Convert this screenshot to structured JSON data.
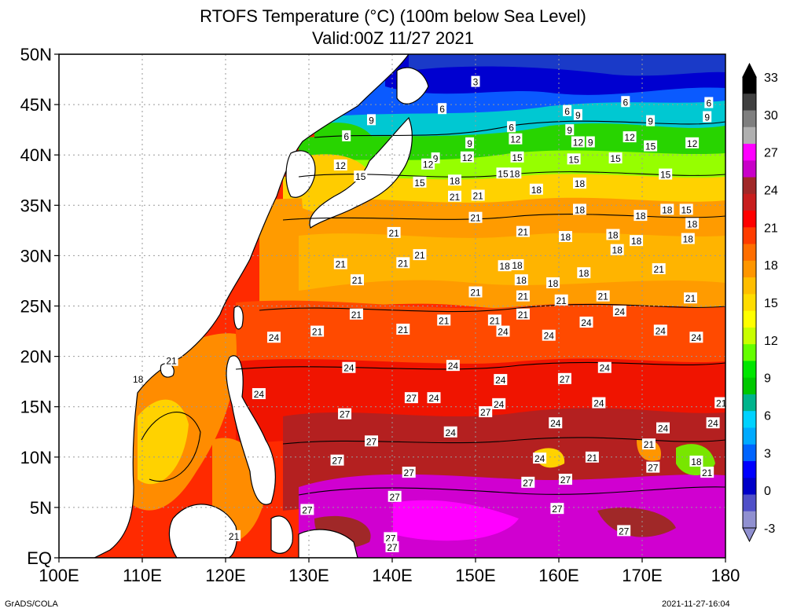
{
  "title": {
    "line1": "RTOFS Temperature (°C) (100m below Sea Level)",
    "line2": "Valid:00Z 11/27 2021"
  },
  "footer": {
    "left": "GrADS/COLA",
    "right": "2021-11-27-16:04"
  },
  "axes": {
    "x_ticks": [
      "100E",
      "110E",
      "120E",
      "130E",
      "140E",
      "150E",
      "160E",
      "170E",
      "180"
    ],
    "y_ticks": [
      "EQ",
      "5N",
      "10N",
      "15N",
      "20N",
      "25N",
      "30N",
      "35N",
      "40N",
      "45N",
      "50N"
    ],
    "x_range_deg_east": [
      100,
      180
    ],
    "y_range_deg_north": [
      0,
      50
    ],
    "grid": true
  },
  "colorbar": {
    "labels": [
      "33",
      "30",
      "27",
      "24",
      "21",
      "18",
      "15",
      "12",
      "9",
      "6",
      "3",
      "0",
      "-3"
    ],
    "colors_top_to_bottom": [
      "#000000",
      "#404040",
      "#7f7f7f",
      "#b0b0b0",
      "#ff00ff",
      "#c800c8",
      "#a02828",
      "#c81e1e",
      "#ff0000",
      "#ff3c00",
      "#ff6e00",
      "#ff9600",
      "#ffbe00",
      "#ffdc00",
      "#ffff00",
      "#c8ff00",
      "#64ff00",
      "#00e600",
      "#00c800",
      "#00b48c",
      "#00d2ff",
      "#00aaff",
      "#0064ff",
      "#0000ff",
      "#0000c8",
      "#5050c8",
      "#9090d0"
    ]
  },
  "contour_labels": [
    {
      "t": "3",
      "lon": 150.0,
      "lat": 47.3
    },
    {
      "t": "6",
      "lon": 178.0,
      "lat": 45.2
    },
    {
      "t": "6",
      "lon": 146.0,
      "lat": 44.6
    },
    {
      "t": "6",
      "lon": 161.0,
      "lat": 44.4
    },
    {
      "t": "6",
      "lon": 168.0,
      "lat": 45.3
    },
    {
      "t": "6",
      "lon": 134.5,
      "lat": 41.9
    },
    {
      "t": "6",
      "lon": 154.3,
      "lat": 42.8
    },
    {
      "t": "9",
      "lon": 162.3,
      "lat": 44.0
    },
    {
      "t": "9",
      "lon": 137.5,
      "lat": 43.5
    },
    {
      "t": "9",
      "lon": 171.0,
      "lat": 43.4
    },
    {
      "t": "9",
      "lon": 177.8,
      "lat": 43.8
    },
    {
      "t": "9",
      "lon": 161.3,
      "lat": 42.5
    },
    {
      "t": "9",
      "lon": 163.8,
      "lat": 41.3
    },
    {
      "t": "9",
      "lon": 149.3,
      "lat": 41.2
    },
    {
      "t": "9",
      "lon": 145.2,
      "lat": 39.7
    },
    {
      "t": "12",
      "lon": 154.8,
      "lat": 41.6
    },
    {
      "t": "12",
      "lon": 162.3,
      "lat": 41.3
    },
    {
      "t": "12",
      "lon": 168.5,
      "lat": 41.8
    },
    {
      "t": "12",
      "lon": 176.0,
      "lat": 41.2
    },
    {
      "t": "12",
      "lon": 149.0,
      "lat": 39.8
    },
    {
      "t": "12",
      "lon": 144.3,
      "lat": 39.1
    },
    {
      "t": "12",
      "lon": 133.8,
      "lat": 39.0
    },
    {
      "t": "15",
      "lon": 136.2,
      "lat": 37.9
    },
    {
      "t": "15",
      "lon": 171.0,
      "lat": 40.9
    },
    {
      "t": "15",
      "lon": 155.0,
      "lat": 39.8
    },
    {
      "t": "15",
      "lon": 161.8,
      "lat": 39.6
    },
    {
      "t": "15",
      "lon": 166.8,
      "lat": 39.7
    },
    {
      "t": "15",
      "lon": 172.8,
      "lat": 38.1
    },
    {
      "t": "15",
      "lon": 153.3,
      "lat": 38.2
    },
    {
      "t": "15",
      "lon": 143.3,
      "lat": 37.3
    },
    {
      "t": "15",
      "lon": 175.3,
      "lat": 34.6
    },
    {
      "t": "18",
      "lon": 154.7,
      "lat": 38.2
    },
    {
      "t": "18",
      "lon": 147.5,
      "lat": 37.5
    },
    {
      "t": "18",
      "lon": 157.3,
      "lat": 36.6
    },
    {
      "t": "18",
      "lon": 162.5,
      "lat": 37.2
    },
    {
      "t": "18",
      "lon": 162.5,
      "lat": 34.6
    },
    {
      "t": "18",
      "lon": 169.8,
      "lat": 34.0
    },
    {
      "t": "18",
      "lon": 173.0,
      "lat": 34.6
    },
    {
      "t": "18",
      "lon": 176.0,
      "lat": 33.2
    },
    {
      "t": "18",
      "lon": 160.8,
      "lat": 31.9
    },
    {
      "t": "18",
      "lon": 166.5,
      "lat": 32.1
    },
    {
      "t": "18",
      "lon": 169.3,
      "lat": 31.5
    },
    {
      "t": "18",
      "lon": 167.0,
      "lat": 30.6
    },
    {
      "t": "18",
      "lon": 175.5,
      "lat": 31.7
    },
    {
      "t": "18",
      "lon": 153.5,
      "lat": 29.0
    },
    {
      "t": "18",
      "lon": 155.0,
      "lat": 29.1
    },
    {
      "t": "18",
      "lon": 163.0,
      "lat": 28.3
    },
    {
      "t": "18",
      "lon": 155.5,
      "lat": 27.6
    },
    {
      "t": "18",
      "lon": 159.3,
      "lat": 27.3
    },
    {
      "t": "18",
      "lon": 109.5,
      "lat": 17.8
    },
    {
      "t": "18",
      "lon": 176.5,
      "lat": 9.6
    },
    {
      "t": "21",
      "lon": 147.5,
      "lat": 35.9
    },
    {
      "t": "21",
      "lon": 150.3,
      "lat": 36.0
    },
    {
      "t": "21",
      "lon": 150.0,
      "lat": 33.8
    },
    {
      "t": "21",
      "lon": 140.2,
      "lat": 32.3
    },
    {
      "t": "21",
      "lon": 155.7,
      "lat": 32.4
    },
    {
      "t": "21",
      "lon": 143.3,
      "lat": 30.1
    },
    {
      "t": "21",
      "lon": 141.3,
      "lat": 29.3
    },
    {
      "t": "21",
      "lon": 133.8,
      "lat": 29.2
    },
    {
      "t": "21",
      "lon": 135.8,
      "lat": 27.6
    },
    {
      "t": "21",
      "lon": 172.0,
      "lat": 28.7
    },
    {
      "t": "21",
      "lon": 150.0,
      "lat": 26.4
    },
    {
      "t": "21",
      "lon": 155.7,
      "lat": 26.0
    },
    {
      "t": "21",
      "lon": 160.3,
      "lat": 25.6
    },
    {
      "t": "21",
      "lon": 165.3,
      "lat": 26.0
    },
    {
      "t": "21",
      "lon": 175.8,
      "lat": 25.8
    },
    {
      "t": "21",
      "lon": 135.7,
      "lat": 24.2
    },
    {
      "t": "21",
      "lon": 155.7,
      "lat": 24.2
    },
    {
      "t": "21",
      "lon": 146.2,
      "lat": 23.6
    },
    {
      "t": "21",
      "lon": 152.3,
      "lat": 23.6
    },
    {
      "t": "21",
      "lon": 141.3,
      "lat": 22.7
    },
    {
      "t": "21",
      "lon": 131.0,
      "lat": 22.5
    },
    {
      "t": "21",
      "lon": 113.5,
      "lat": 19.6
    },
    {
      "t": "21",
      "lon": 179.5,
      "lat": 15.4
    },
    {
      "t": "21",
      "lon": 164.0,
      "lat": 10.0
    },
    {
      "t": "21",
      "lon": 170.8,
      "lat": 11.3
    },
    {
      "t": "21",
      "lon": 177.8,
      "lat": 8.5
    },
    {
      "t": "21",
      "lon": 121.0,
      "lat": 2.2
    },
    {
      "t": "24",
      "lon": 158.8,
      "lat": 22.1
    },
    {
      "t": "24",
      "lon": 163.3,
      "lat": 23.4
    },
    {
      "t": "24",
      "lon": 167.3,
      "lat": 24.5
    },
    {
      "t": "24",
      "lon": 172.2,
      "lat": 22.6
    },
    {
      "t": "24",
      "lon": 176.5,
      "lat": 21.9
    },
    {
      "t": "24",
      "lon": 153.3,
      "lat": 22.5
    },
    {
      "t": "24",
      "lon": 125.8,
      "lat": 21.9
    },
    {
      "t": "24",
      "lon": 134.8,
      "lat": 18.9
    },
    {
      "t": "24",
      "lon": 147.3,
      "lat": 19.1
    },
    {
      "t": "24",
      "lon": 165.5,
      "lat": 18.9
    },
    {
      "t": "24",
      "lon": 153.0,
      "lat": 17.7
    },
    {
      "t": "24",
      "lon": 124.0,
      "lat": 16.3
    },
    {
      "t": "24",
      "lon": 145.0,
      "lat": 15.9
    },
    {
      "t": "24",
      "lon": 152.8,
      "lat": 15.3
    },
    {
      "t": "24",
      "lon": 164.8,
      "lat": 15.4
    },
    {
      "t": "24",
      "lon": 159.6,
      "lat": 13.4
    },
    {
      "t": "24",
      "lon": 147.0,
      "lat": 12.5
    },
    {
      "t": "24",
      "lon": 172.5,
      "lat": 12.9
    },
    {
      "t": "24",
      "lon": 178.5,
      "lat": 13.4
    },
    {
      "t": "24",
      "lon": 157.7,
      "lat": 9.9
    },
    {
      "t": "27",
      "lon": 160.7,
      "lat": 17.8
    },
    {
      "t": "27",
      "lon": 142.3,
      "lat": 15.9
    },
    {
      "t": "27",
      "lon": 151.2,
      "lat": 14.5
    },
    {
      "t": "27",
      "lon": 134.3,
      "lat": 14.3
    },
    {
      "t": "27",
      "lon": 137.5,
      "lat": 11.6
    },
    {
      "t": "27",
      "lon": 133.4,
      "lat": 9.7
    },
    {
      "t": "27",
      "lon": 142.0,
      "lat": 8.5
    },
    {
      "t": "27",
      "lon": 156.3,
      "lat": 7.5
    },
    {
      "t": "27",
      "lon": 160.8,
      "lat": 7.8
    },
    {
      "t": "27",
      "lon": 171.3,
      "lat": 9.0
    },
    {
      "t": "27",
      "lon": 140.3,
      "lat": 6.1
    },
    {
      "t": "27",
      "lon": 129.8,
      "lat": 4.8
    },
    {
      "t": "27",
      "lon": 159.8,
      "lat": 4.9
    },
    {
      "t": "27",
      "lon": 167.8,
      "lat": 2.7
    },
    {
      "t": "27",
      "lon": 139.8,
      "lat": 2.0
    },
    {
      "t": "27",
      "lon": 140.0,
      "lat": 1.1
    }
  ]
}
